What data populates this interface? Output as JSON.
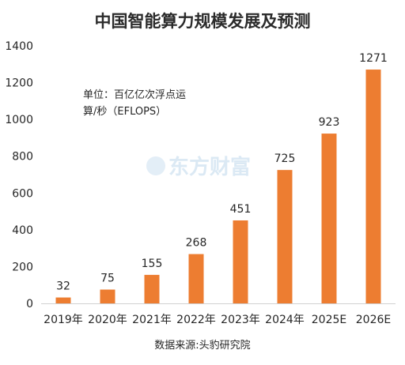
{
  "chart_data": {
    "type": "bar",
    "title": "中国智能算力规模发展及预测",
    "categories": [
      "2019年",
      "2020年",
      "2021年",
      "2022年",
      "2023年",
      "2024年",
      "2025E",
      "2026E"
    ],
    "values": [
      32,
      75,
      155,
      268,
      451,
      725,
      923,
      1271
    ],
    "data_labels": [
      "32",
      "75",
      "155",
      "268",
      "451",
      "725",
      "923",
      "1271"
    ],
    "ylim": [
      0,
      1400
    ],
    "yticks": [
      0,
      200,
      400,
      600,
      800,
      1000,
      1200,
      1400
    ],
    "ytick_labels": [
      "0",
      "200",
      "400",
      "600",
      "800",
      "1000",
      "1200",
      "1400"
    ],
    "unit_note_line1": "单位：百亿亿次浮点运",
    "unit_note_line2": "算/秒（EFLOPS）",
    "source": "数据来源:头豹研究院",
    "watermark": "东方财富",
    "grid": false,
    "legend": "none",
    "bar_color": "#ed7d31"
  }
}
